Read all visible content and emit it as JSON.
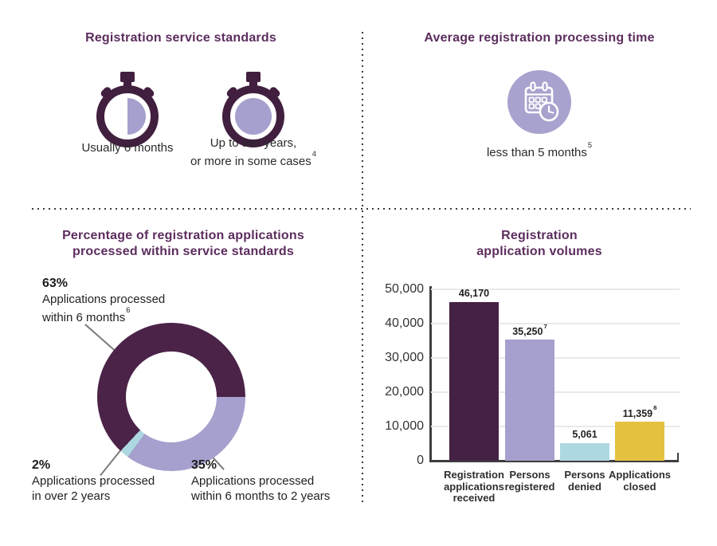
{
  "palette": {
    "heading_purple": "#5c2d5e",
    "dark_purple": "#452145",
    "stopwatch_purple": "#411f3e",
    "lavender": "#a5a0cd",
    "teal": "#aed8e1",
    "yellow": "#e4c240",
    "text_dark": "#262626",
    "axis_gray": "#3e3e3e",
    "grid_gray": "#e9e9e9"
  },
  "icons": [
    {
      "name": "stopwatch-half-icon",
      "meaning": "stopwatch with half-filled dial"
    },
    {
      "name": "stopwatch-full-icon",
      "meaning": "stopwatch with fully-filled dial"
    },
    {
      "name": "calendar-clock-icon",
      "meaning": "calendar with clock in lavender circle"
    }
  ],
  "standards": {
    "title": "Registration service standards",
    "item1_label": "Usually 6 months",
    "item2_line1": "Up to two years,",
    "item2_line2": "or more in some cases",
    "item2_sup": "4"
  },
  "processing": {
    "title": "Average registration processing time",
    "label": "less than 5 months",
    "label_sup": "5"
  },
  "chart_data": [
    {
      "type": "pie",
      "subtype": "donut",
      "title": "Percentage of registration applications processed within service standards",
      "title_lines": [
        "Percentage of registration applications",
        "processed within service standards"
      ],
      "start_angle_deg": 223.2,
      "slices": [
        {
          "label": "Applications processed within 6 months",
          "value_pct": 63,
          "color": "#4b2348",
          "callout": {
            "pct": "63%",
            "line1": "Applications processed",
            "line2": "within 6 months",
            "sup": "6"
          }
        },
        {
          "label": "Applications processed within 6 months to 2 years",
          "value_pct": 35,
          "color": "#a5a0cd",
          "callout": {
            "pct": "35%",
            "line1": "Applications processed",
            "line2": "within 6 months to 2 years",
            "sup": ""
          }
        },
        {
          "label": "Applications processed in over 2 years",
          "value_pct": 2,
          "color": "#aed8e1",
          "callout": {
            "pct": "2%",
            "line1": "Applications processed",
            "line2": "in over 2 years",
            "sup": ""
          }
        }
      ]
    },
    {
      "type": "bar",
      "title": "Registration application volumes",
      "title_lines": [
        "Registration",
        "application volumes"
      ],
      "categories": [
        "Registration applications received",
        "Persons registered",
        "Persons denied",
        "Applications closed"
      ],
      "category_lines": [
        [
          "Registration",
          "applications",
          "received"
        ],
        [
          "Persons",
          "registered"
        ],
        [
          "Persons",
          "denied"
        ],
        [
          "Applications",
          "closed"
        ]
      ],
      "values": [
        46170,
        35250,
        5061,
        11359
      ],
      "value_labels": [
        {
          "text": "46,170",
          "sup": ""
        },
        {
          "text": "35,250",
          "sup": "7"
        },
        {
          "text": "5,061",
          "sup": ""
        },
        {
          "text": "11,359",
          "sup": "8"
        }
      ],
      "colors": [
        "#452145",
        "#a5a0cd",
        "#aed8e1",
        "#e4c240"
      ],
      "ylim": [
        0,
        50000
      ],
      "yticks": [
        {
          "label": "0",
          "value": 0
        },
        {
          "label": "10,000",
          "value": 10000
        },
        {
          "label": "20,000",
          "value": 20000
        },
        {
          "label": "30,000",
          "value": 30000
        },
        {
          "label": "40,000",
          "value": 40000
        },
        {
          "label": "50,000",
          "value": 50000
        }
      ],
      "grid": true,
      "legend": "none"
    }
  ]
}
